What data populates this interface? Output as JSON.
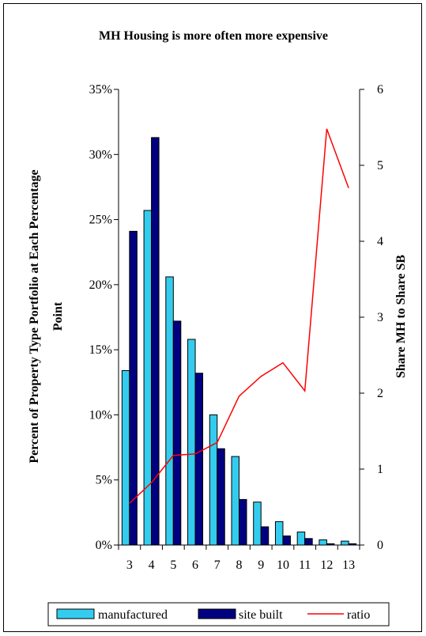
{
  "chart_data": {
    "type": "bar",
    "title": "MH Housing is more often more expensive",
    "ylabel_left_line1": "Percent of Property Type Portfolio at Each Percentage",
    "ylabel_left_line2": "Point",
    "ylabel_right": "Share MH to Share SB",
    "categories": [
      "3",
      "4",
      "5",
      "6",
      "7",
      "8",
      "9",
      "10",
      "11",
      "12",
      "13"
    ],
    "y_left_ticks": [
      "0%",
      "5%",
      "10%",
      "15%",
      "20%",
      "25%",
      "30%",
      "35%"
    ],
    "y_right_ticks": [
      "0",
      "1",
      "2",
      "3",
      "4",
      "5",
      "6"
    ],
    "ylim_left": [
      0,
      35
    ],
    "ylim_right": [
      0,
      6
    ],
    "series": [
      {
        "name": "manufactured",
        "kind": "bar",
        "axis": "left",
        "color": "#33CCEE",
        "values": [
          13.4,
          25.7,
          20.6,
          15.8,
          10.0,
          6.8,
          3.3,
          1.8,
          1.0,
          0.4,
          0.3
        ]
      },
      {
        "name": "site built",
        "kind": "bar",
        "axis": "left",
        "color": "#000080",
        "values": [
          24.1,
          31.3,
          17.2,
          13.2,
          7.4,
          3.5,
          1.4,
          0.7,
          0.5,
          0.1,
          0.1
        ]
      },
      {
        "name": "ratio",
        "kind": "line",
        "axis": "right",
        "color": "#FF0000",
        "values": [
          0.55,
          0.82,
          1.18,
          1.2,
          1.35,
          1.96,
          2.22,
          2.4,
          2.03,
          5.48,
          4.7
        ]
      }
    ],
    "legend_position": "bottom",
    "grid": false
  }
}
